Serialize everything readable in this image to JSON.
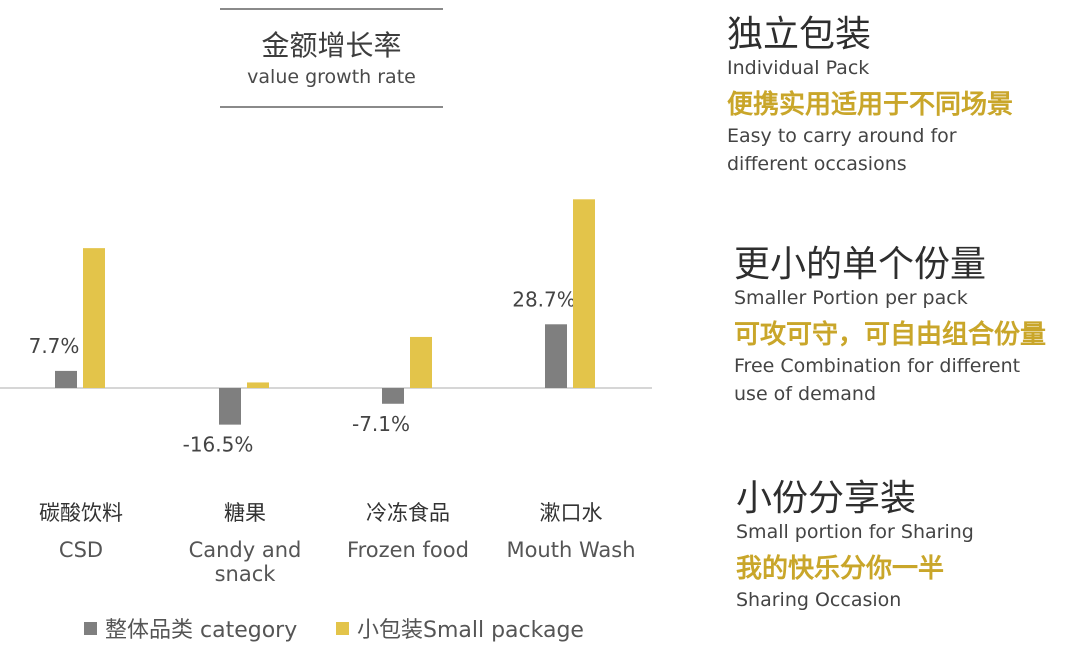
{
  "header": {
    "title_cn": "金额增长率",
    "title_en": "value growth rate"
  },
  "chart_data": {
    "type": "bar",
    "categories": [
      "碳酸饮料",
      "糖果",
      "冷冻食品",
      "漱口水"
    ],
    "categories_en": [
      "CSD",
      "Candy and snack",
      "Frozen food",
      "Mouth Wash"
    ],
    "series": [
      {
        "name": "整体品类 category",
        "color": "#7f7f7f",
        "values": [
          7.7,
          -16.5,
          -7.1,
          28.7
        ]
      },
      {
        "name": "小包装Small package",
        "color": "#e3c44a",
        "values": [
          63,
          2.5,
          23,
          85
        ]
      }
    ],
    "data_labels": [
      "7.7%",
      "-16.5%",
      "-7.1%",
      "28.7%"
    ],
    "ylim": [
      -20,
      90
    ]
  },
  "legend": {
    "category": "整体品类 category",
    "small": "小包装Small package"
  },
  "features": [
    {
      "cn": "独立包装",
      "en": "Individual Pack",
      "sub_cn": "便携实用适用于不同场景",
      "sub_en": [
        "Easy to carry around for",
        "different occasions"
      ]
    },
    {
      "cn": "更小的单个份量",
      "en": "Smaller Portion per pack",
      "sub_cn": "可攻可守，可自由组合份量",
      "sub_en": [
        "Free Combination for different",
        "use of demand"
      ]
    },
    {
      "cn": "小份分享装",
      "en": "Small portion for Sharing",
      "sub_cn": "我的快乐分你一半",
      "sub_en": [
        "Sharing Occasion"
      ]
    }
  ],
  "colors": {
    "gray": "#7f7f7f",
    "gold": "#e3c44a",
    "accent_text": "#c9a62a"
  }
}
